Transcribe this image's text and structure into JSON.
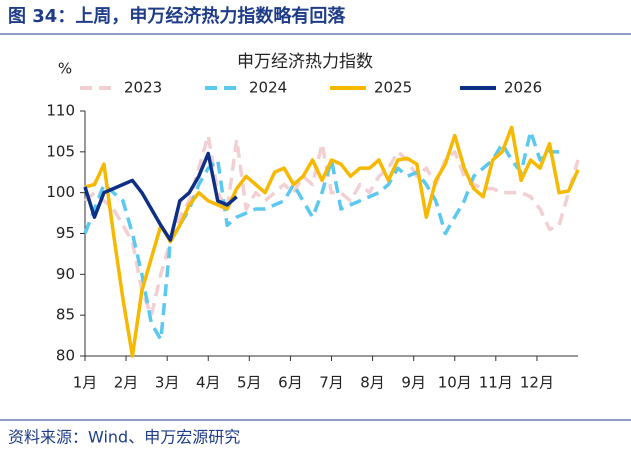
{
  "header": {
    "title": "图 34：上周，申万经济热力指数略有回落"
  },
  "footer": {
    "source": "资料来源：Wind、申万宏源研究"
  },
  "chart_data": {
    "type": "line",
    "title": "申万经济热力指数",
    "y_label": "%",
    "legend": "top",
    "x": [
      1,
      2,
      3,
      4,
      5,
      6,
      7,
      8,
      9,
      10,
      11,
      12,
      13,
      14,
      15,
      16,
      17,
      18,
      19,
      20,
      21,
      22,
      23,
      24,
      25,
      26,
      27,
      28,
      29,
      30,
      31,
      32,
      33,
      34,
      35,
      36,
      37,
      38,
      39,
      40,
      41,
      42,
      43,
      44,
      45,
      46,
      47,
      48,
      49,
      50,
      51,
      52,
      53
    ],
    "xlim": [
      1,
      53
    ],
    "xticks": [
      {
        "value": 1,
        "label": "1月"
      },
      {
        "value": 5.33,
        "label": "2月"
      },
      {
        "value": 9.67,
        "label": "3月"
      },
      {
        "value": 14,
        "label": "4月"
      },
      {
        "value": 18.33,
        "label": "5月"
      },
      {
        "value": 22.67,
        "label": "6月"
      },
      {
        "value": 27,
        "label": "7月"
      },
      {
        "value": 31.33,
        "label": "8月"
      },
      {
        "value": 35.67,
        "label": "9月"
      },
      {
        "value": 40,
        "label": "10月"
      },
      {
        "value": 44.33,
        "label": "11月"
      },
      {
        "value": 48.67,
        "label": "12月"
      }
    ],
    "ylim": [
      80,
      110
    ],
    "yticks": [
      80,
      85,
      90,
      95,
      100,
      105,
      110
    ],
    "series": [
      {
        "name": "2023",
        "color": "#f2cfd3",
        "dash": true,
        "values": [
          99,
          100,
          99,
          98,
          96,
          94,
          88,
          85,
          90,
          94,
          97,
          99,
          103,
          107,
          100,
          98,
          106.5,
          98,
          100,
          99,
          100,
          101,
          100,
          102,
          101,
          106,
          100,
          100,
          99,
          101,
          100,
          102,
          103,
          105,
          104,
          102,
          103,
          101,
          104,
          105,
          102,
          101,
          100.5,
          100.5,
          100,
          100,
          100,
          99.5,
          98,
          95.5,
          96,
          100,
          104
        ]
      },
      {
        "name": "2024",
        "color": "#5bc8ef",
        "dash": true,
        "values": [
          95,
          98,
          101,
          100,
          99,
          95,
          90,
          84,
          82,
          94,
          96,
          98,
          101,
          103,
          104,
          96,
          97,
          97.5,
          98,
          98,
          98.5,
          99,
          101,
          99,
          97,
          100,
          104,
          98,
          98.5,
          99,
          99.5,
          100,
          101,
          103,
          102,
          102.5,
          101,
          99,
          95,
          97,
          99,
          102,
          103,
          104,
          106,
          104,
          102.5,
          107.5,
          104,
          105,
          105,
          null,
          null
        ]
      },
      {
        "name": "2025",
        "color": "#f7b800",
        "dash": false,
        "values": [
          100.7,
          101,
          103.5,
          95,
          87,
          80,
          88,
          92,
          96,
          94,
          96,
          98.5,
          100,
          99,
          98.5,
          98,
          100.5,
          102,
          101,
          100,
          102.5,
          103,
          101,
          102,
          104,
          101.5,
          104,
          103.5,
          102,
          103,
          103,
          104,
          101.5,
          104,
          104.2,
          103.5,
          97,
          101.5,
          103.5,
          107,
          103,
          100.5,
          99.5,
          104,
          105,
          108,
          101.5,
          104,
          103,
          106,
          100,
          100.2,
          102.8
        ]
      },
      {
        "name": "2026",
        "color": "#0e2f86",
        "dash": false,
        "values": [
          100.7,
          97,
          100,
          100.5,
          101,
          101.5,
          100,
          98,
          96,
          94.2,
          99,
          100,
          102,
          104.8,
          99,
          98.5,
          99.5,
          null,
          null,
          null,
          null,
          null,
          null,
          null,
          null,
          null,
          null,
          null,
          null,
          null,
          null,
          null,
          null,
          null,
          null,
          null,
          null,
          null,
          null,
          null,
          null,
          null,
          null,
          null,
          null,
          null,
          null,
          null,
          null,
          null,
          null,
          null,
          null
        ]
      }
    ]
  }
}
